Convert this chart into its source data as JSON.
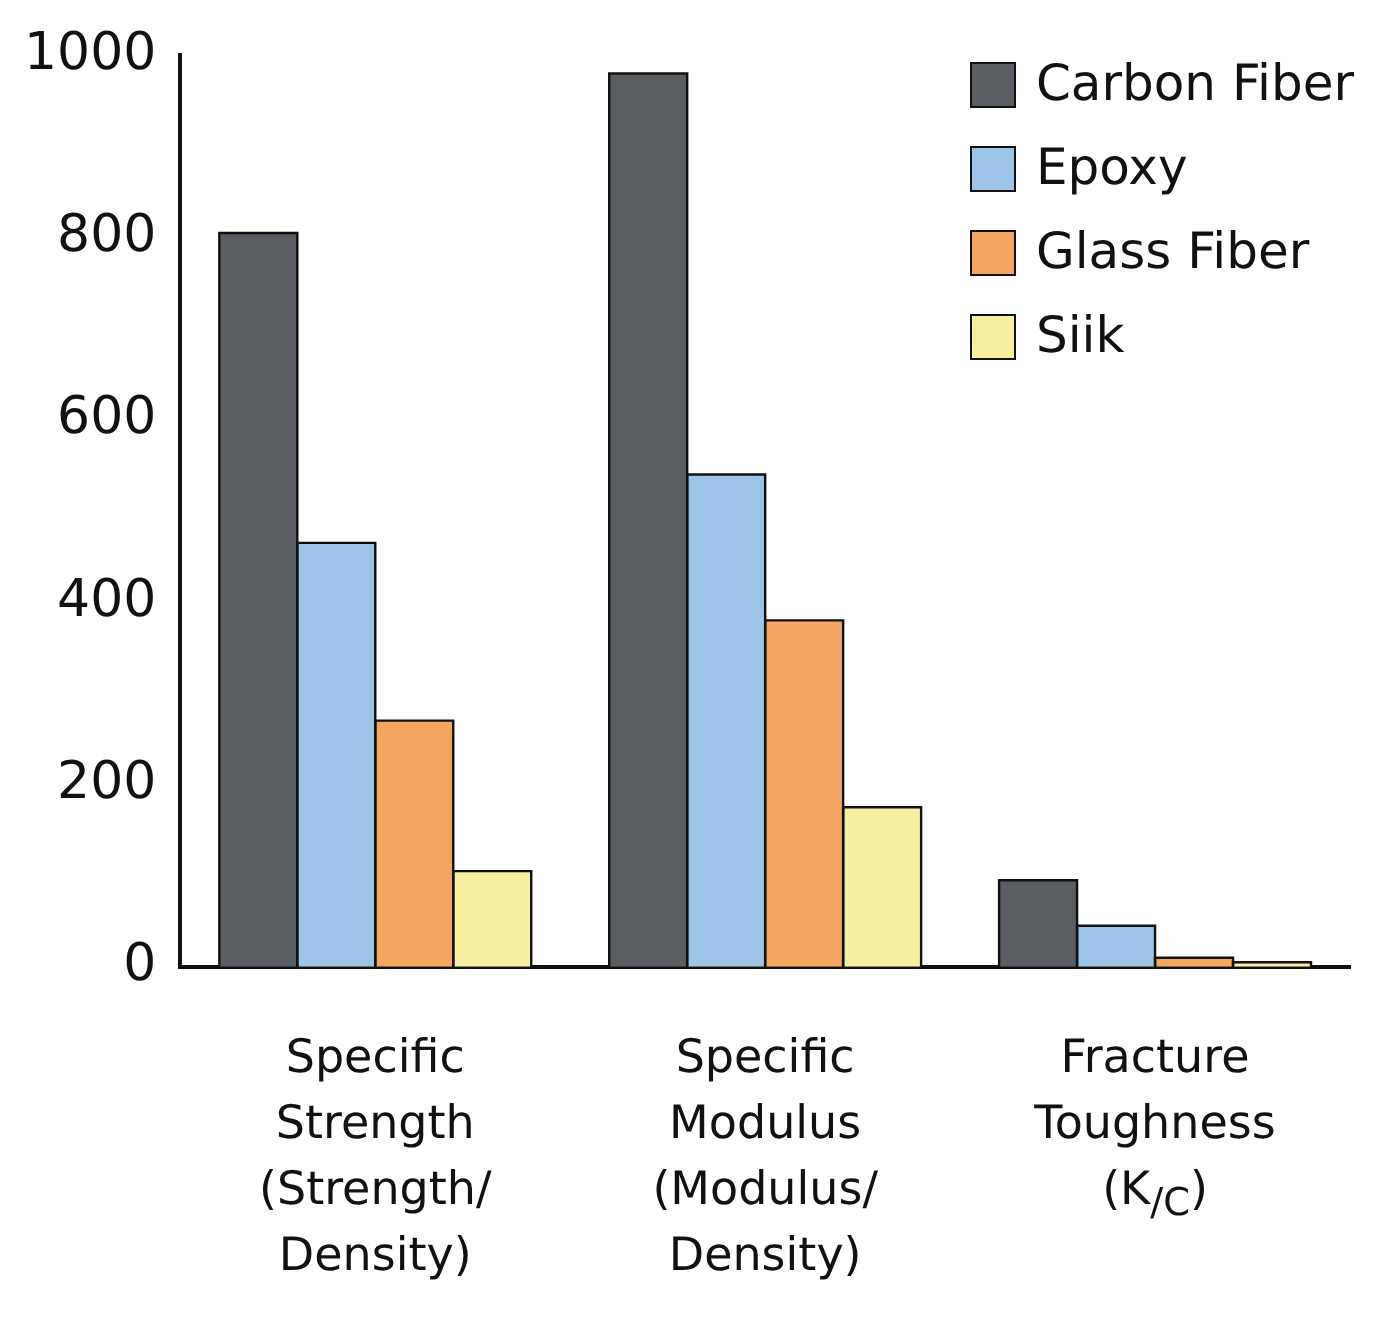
{
  "chart_data": {
    "type": "bar",
    "categories": [
      "Specific Strength (Strength/ Density)",
      "Specific Modulus (Modulus/ Density)",
      "Fracture Toughness (K$_{/C}$)"
    ],
    "series": [
      {
        "name": "Carbon Fiber",
        "color": "#5a5d61",
        "values": [
          805,
          980,
          95
        ]
      },
      {
        "name": "Epoxy",
        "color": "#9cc4e6",
        "values": [
          465,
          540,
          45
        ]
      },
      {
        "name": "Glass Fiber",
        "color": "#f4a560",
        "values": [
          270,
          380,
          10
        ]
      },
      {
        "name": "Siik",
        "color": "#f6eea0",
        "values": [
          105,
          175,
          5
        ]
      }
    ],
    "ylim": [
      0,
      1000
    ],
    "yticks": [
      0,
      200,
      400,
      600,
      800,
      1000
    ],
    "grid": false,
    "legend": "top right"
  }
}
